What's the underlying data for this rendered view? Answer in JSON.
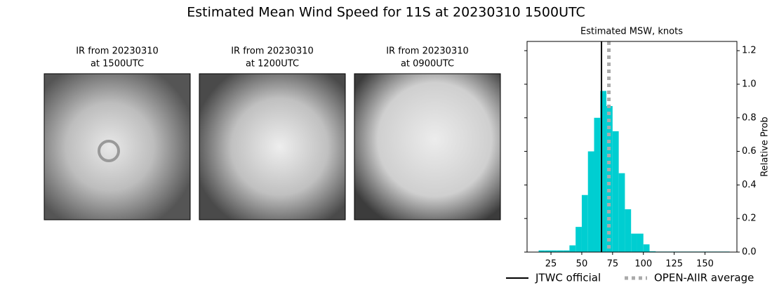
{
  "title": "Estimated Mean Wind Speed for 11S at 20230310 1500UTC",
  "panels": [
    {
      "line1": "IR from 20230310",
      "line2": "at 1500UTC"
    },
    {
      "line1": "IR from 20230310",
      "line2": "at 1200UTC"
    },
    {
      "line1": "IR from 20230310",
      "line2": "at 0900UTC"
    }
  ],
  "chart_data": {
    "type": "histogram",
    "title": "Estimated MSW, knots",
    "y_label": "Relative Prob",
    "color": "#00ced1",
    "bins": [
      15,
      20,
      25,
      30,
      35,
      40,
      45,
      50,
      55,
      60,
      65,
      70,
      75,
      80,
      85,
      90,
      95,
      100,
      105,
      110,
      115,
      120,
      125,
      130,
      135,
      140,
      145,
      150,
      155,
      160,
      165,
      170
    ],
    "values": [
      0.01,
      0.01,
      0.01,
      0.01,
      0.01,
      0.04,
      0.15,
      0.34,
      0.6,
      0.8,
      0.96,
      0.87,
      0.72,
      0.47,
      0.255,
      0.11,
      0.11,
      0.046,
      0.005,
      0.003,
      0.003,
      0.003,
      0.003,
      0.003,
      0.003,
      0.003,
      0.003,
      0.003,
      0.003,
      0.003,
      0.003
    ],
    "xlim": [
      5.6,
      175.9
    ],
    "xticks": [
      25,
      50,
      75,
      100,
      125,
      150
    ],
    "ylim": [
      0,
      1.255
    ],
    "yticks": [
      {
        "value": 0,
        "label": "0.0"
      },
      {
        "value": 0.2,
        "label": "0.2"
      },
      {
        "value": 0.4,
        "label": "0.4"
      },
      {
        "value": 0.6,
        "label": "0.6"
      },
      {
        "value": 0.8,
        "label": "0.8"
      },
      {
        "value": 1.0,
        "label": "1.0"
      },
      {
        "value": 1.2,
        "label": "1.2"
      }
    ],
    "lines": [
      {
        "name": "JTWC official",
        "value": 66,
        "color": "#000000",
        "style": "solid"
      },
      {
        "name": "OPEN-AIIR average",
        "value": 72,
        "color": "#aaaaaa",
        "style": "dotted"
      }
    ],
    "legend": "bottom"
  }
}
